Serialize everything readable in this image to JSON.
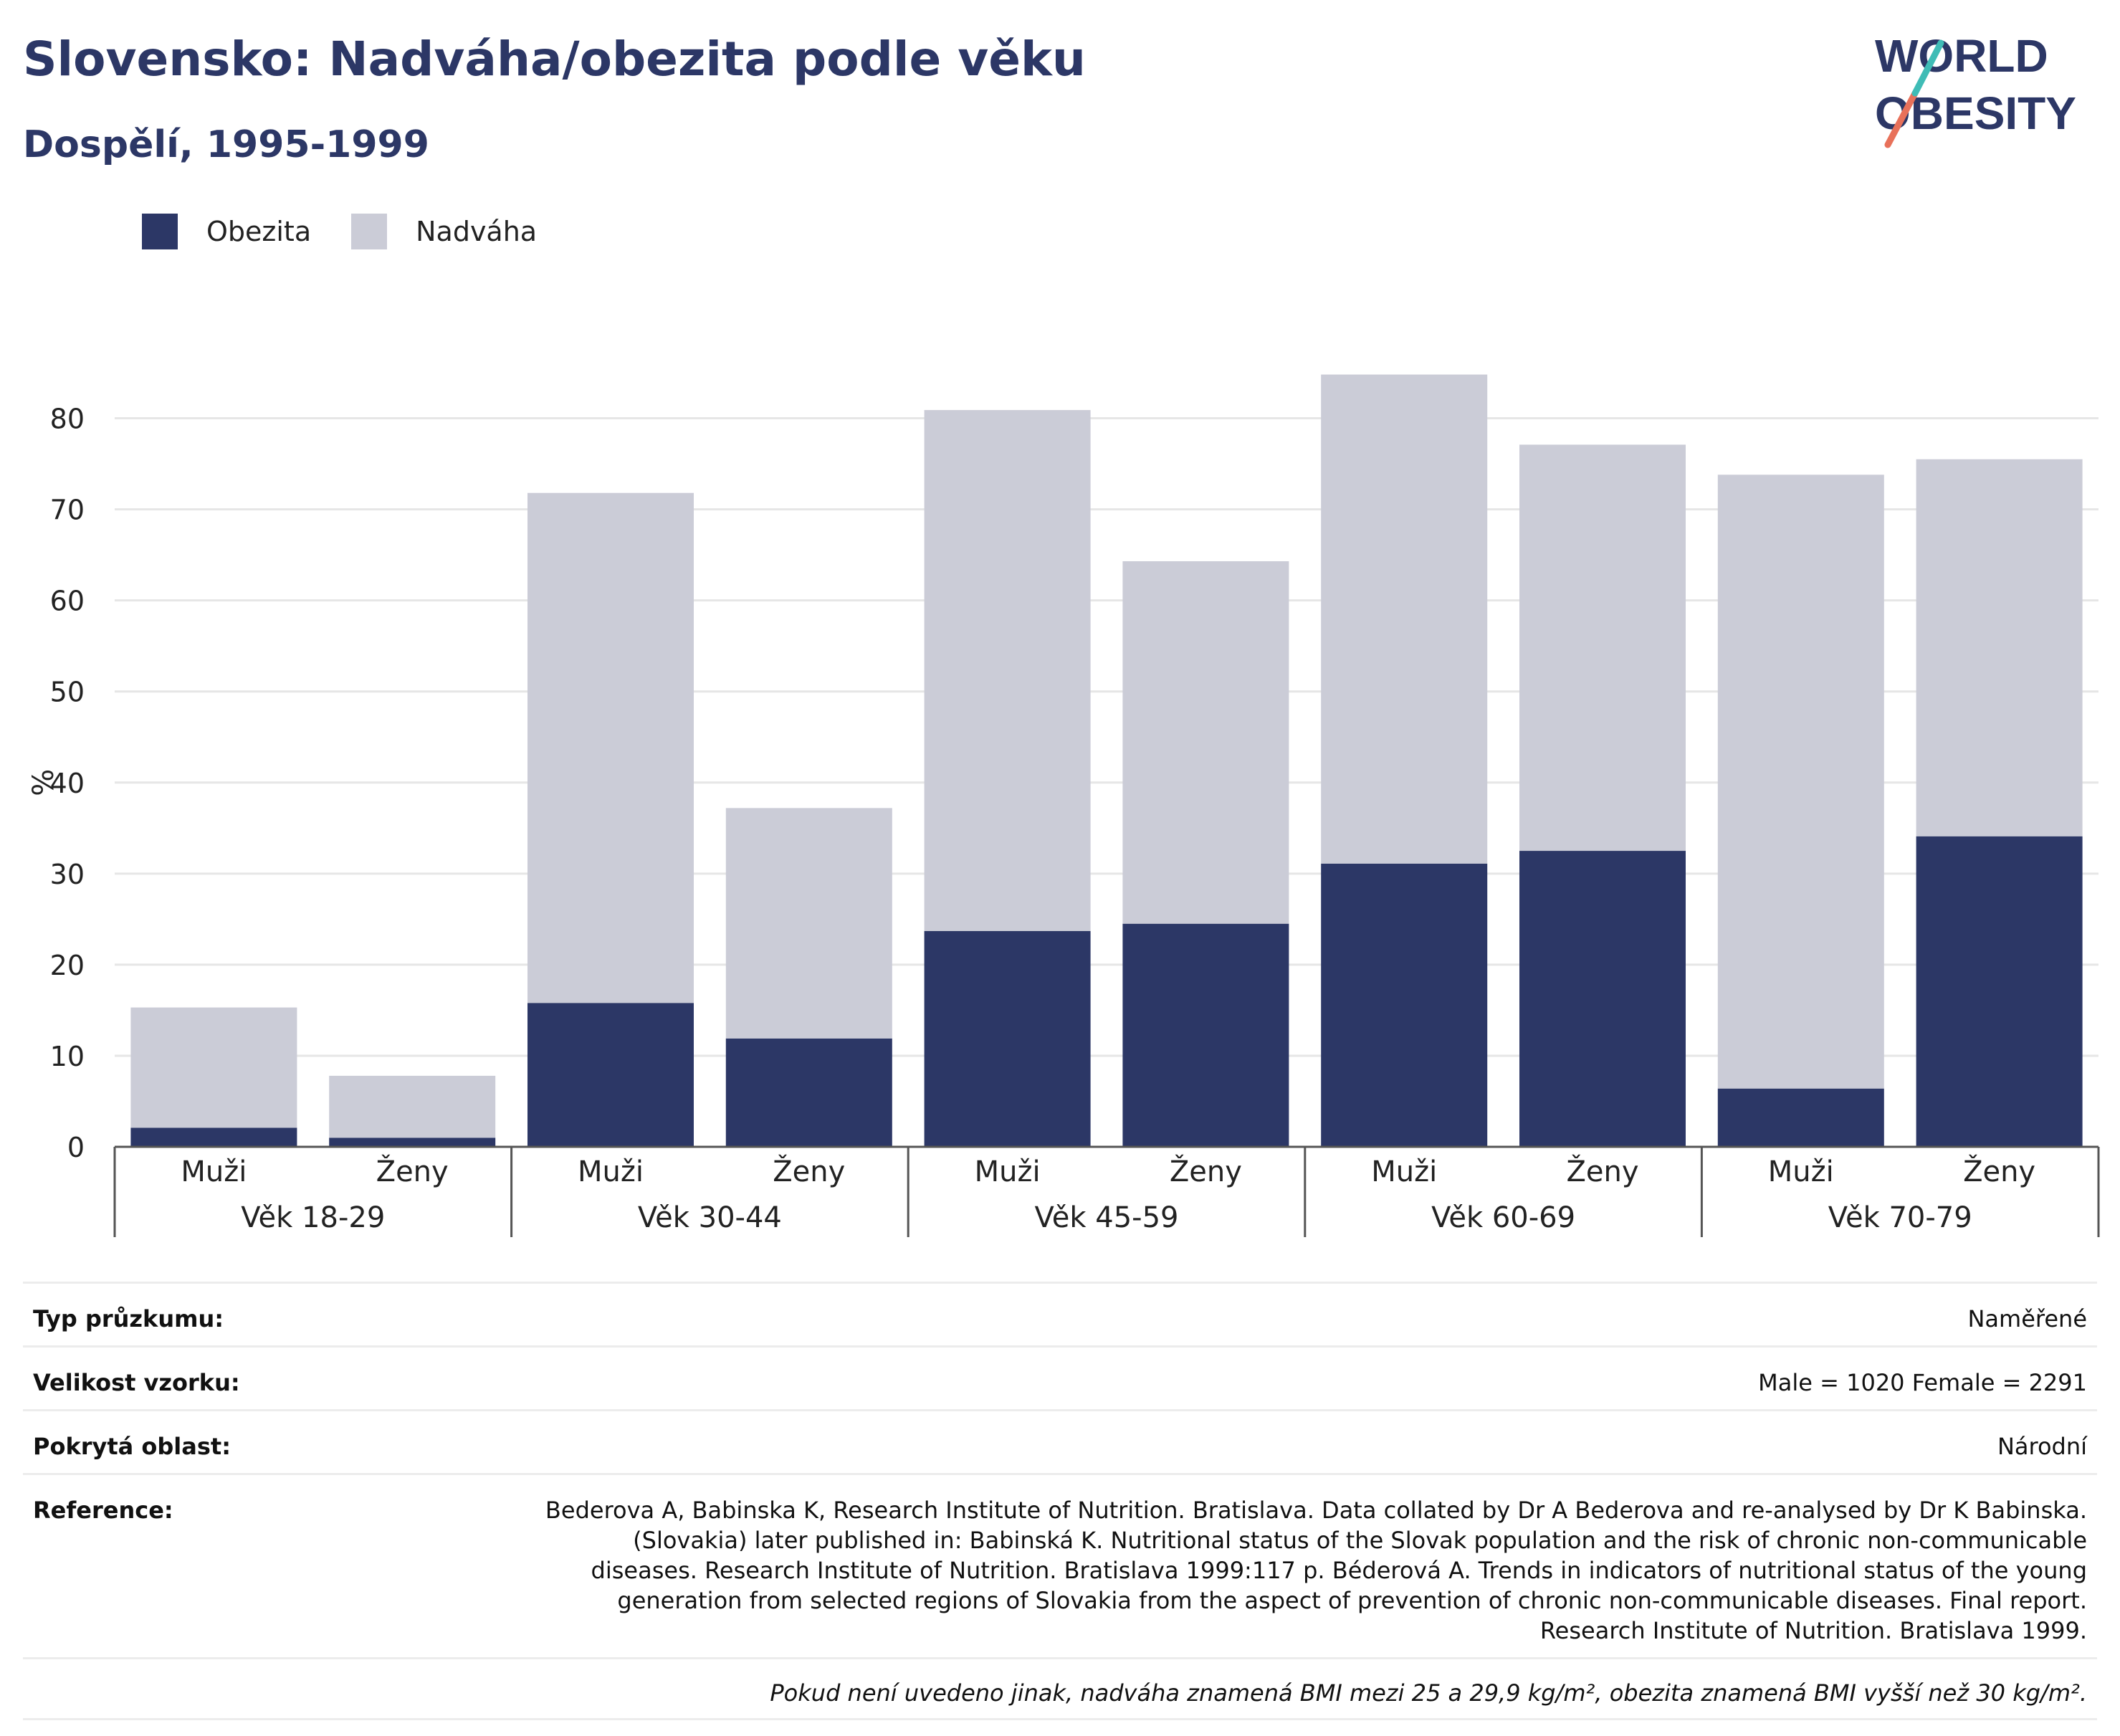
{
  "header": {
    "title": "Slovensko: Nadváha/obezita podle věku",
    "subtitle": "Dospělí, 1995-1999"
  },
  "logo": {
    "line1": "WORLD",
    "line2": "OBESITY"
  },
  "colors": {
    "obesity": "#2c3766",
    "overweight": "#cbccd7",
    "grid": "#e6e6e6",
    "axis": "#555555"
  },
  "chart_data": {
    "type": "bar",
    "stacked": true,
    "ylabel": "%",
    "ylim": [
      0,
      85
    ],
    "yticks": [
      0,
      10,
      20,
      30,
      40,
      50,
      60,
      70,
      80
    ],
    "grid": true,
    "legend_position": "top-left",
    "groups": [
      "Věk 18-29",
      "Věk 30-44",
      "Věk 45-59",
      "Věk 60-69",
      "Věk 70-79"
    ],
    "categories": [
      "Muži",
      "Ženy",
      "Muži",
      "Ženy",
      "Muži",
      "Ženy",
      "Muži",
      "Ženy",
      "Muži",
      "Ženy"
    ],
    "series": [
      {
        "name": "Obezita",
        "values": [
          2.1,
          1.0,
          15.8,
          11.9,
          23.7,
          24.5,
          31.1,
          32.5,
          6.4,
          34.1
        ]
      },
      {
        "name": "Nadváha",
        "values": [
          13.2,
          6.8,
          56.0,
          25.3,
          57.2,
          39.8,
          53.7,
          44.6,
          67.4,
          41.4
        ]
      }
    ]
  },
  "info": {
    "survey_type": {
      "label": "Typ průzkumu:",
      "value": "Naměřené"
    },
    "sample_size": {
      "label": "Velikost vzorku:",
      "value": "Male = 1020 Female = 2291"
    },
    "area": {
      "label": "Pokrytá oblast:",
      "value": "Národní"
    },
    "reference": {
      "label": "Reference:",
      "value": "Bederova A, Babinska K, Research Institute of Nutrition. Bratislava. Data collated by Dr A Bederova and re-analysed by Dr K Babinska. (Slovakia) later published in: Babinská K. Nutritional status of the Slovak population and the risk of chronic non-communicable diseases. Research Institute of Nutrition. Bratislava 1999:117 p. Béderová A. Trends in indicators of nutritional status of the young generation from selected regions of Slovakia from the aspect of prevention of chronic non-communicable diseases. Final report. Research Institute of Nutrition. Bratislava 1999."
    },
    "note": "Pokud není uvedeno jinak, nadváha znamená BMI mezi 25 a 29,9 kg/m², obezita znamená BMI vyšší než 30 kg/m²."
  }
}
